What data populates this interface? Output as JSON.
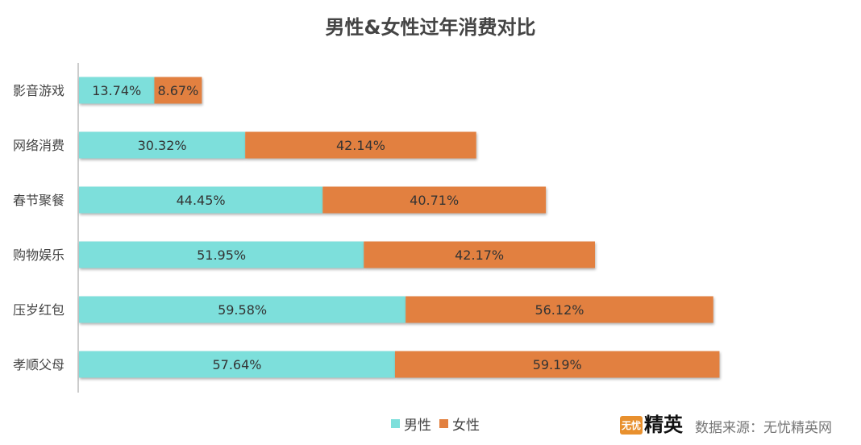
{
  "chart_data": {
    "type": "bar",
    "orientation": "horizontal",
    "stacked": true,
    "title": "男性&女性过年消费对比",
    "categories": [
      "影音游戏",
      "网络消费",
      "春节聚餐",
      "购物娱乐",
      "压岁红包",
      "孝顺父母"
    ],
    "series": [
      {
        "name": "男性",
        "color": "#7ddfdb",
        "values": [
          13.74,
          30.32,
          44.45,
          51.95,
          59.58,
          57.64
        ],
        "labels": [
          "13.74%",
          "30.32%",
          "44.45%",
          "51.95%",
          "59.58%",
          "57.64%"
        ]
      },
      {
        "name": "女性",
        "color": "#e2803f",
        "values": [
          8.67,
          42.14,
          40.71,
          42.17,
          56.12,
          59.19
        ],
        "labels": [
          "8.67%",
          "42.14%",
          "40.71%",
          "42.17%",
          "56.12%",
          "59.19%"
        ]
      }
    ],
    "legend_position": "bottom",
    "grid": false
  },
  "footer": {
    "logo_badge": "无忧",
    "logo_text": "精英",
    "source": "数据来源：无忧精英网"
  }
}
